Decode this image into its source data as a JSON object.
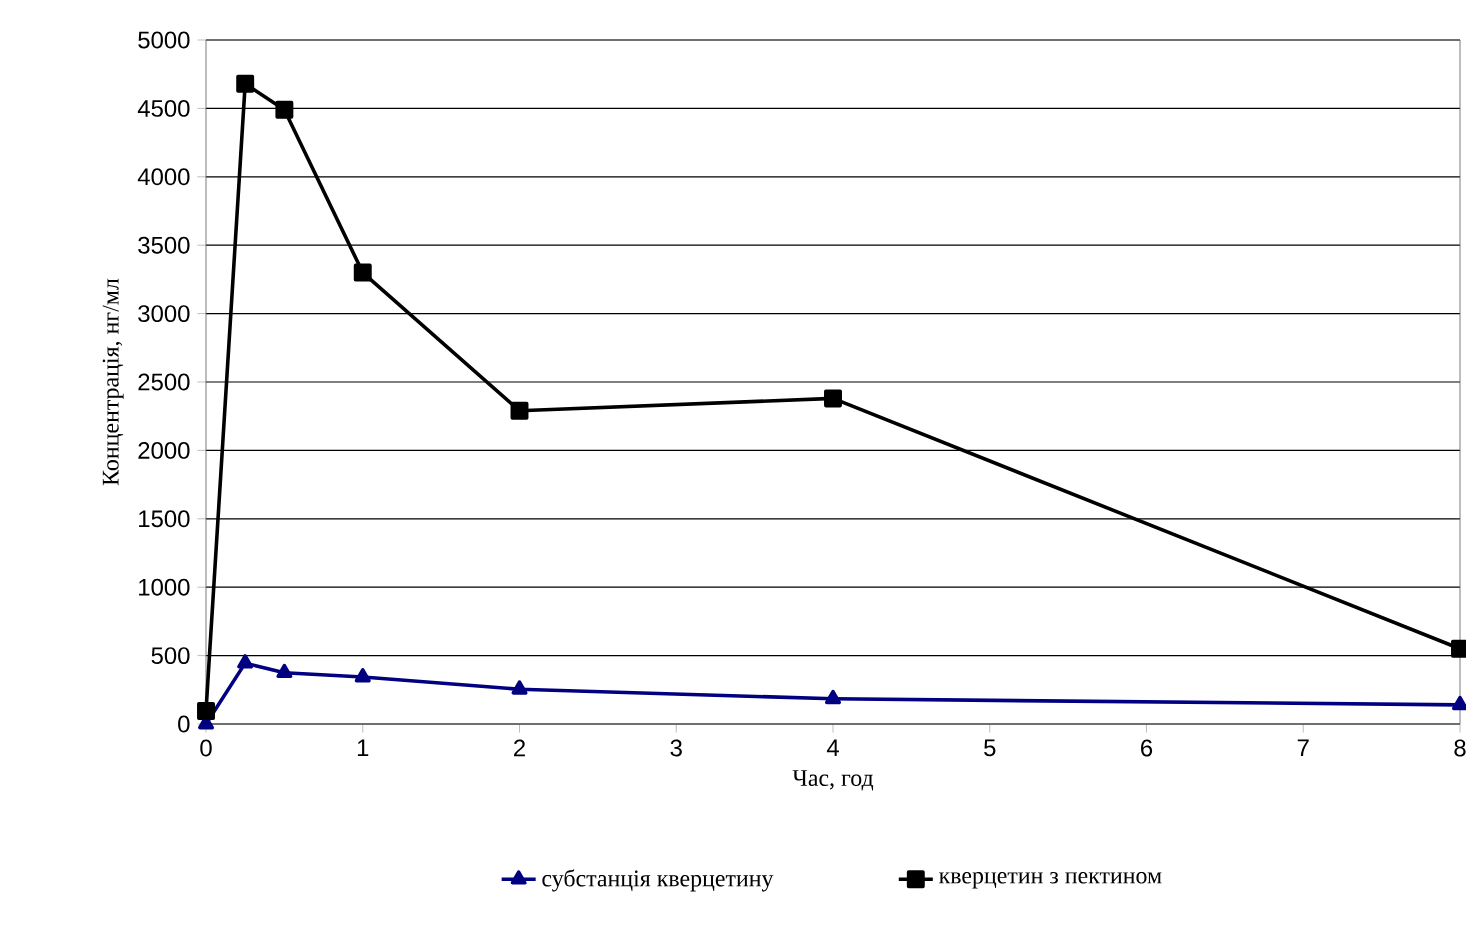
{
  "chart_data": {
    "type": "line",
    "xlabel": "Час, год",
    "ylabel": "Концентрація, нг/мл",
    "x": [
      0,
      0.25,
      0.5,
      1,
      2,
      4,
      8
    ],
    "series": [
      {
        "name": "субстанція кверцетину",
        "color": "#000080",
        "marker": "triangle",
        "values": [
          0,
          445,
          375,
          343,
          254,
          184,
          140
        ]
      },
      {
        "name": "кверцетин з пектином",
        "color": "#000000",
        "marker": "square",
        "values": [
          95,
          4680,
          4490,
          3300,
          2290,
          2380,
          550
        ]
      }
    ],
    "xlim": [
      0,
      8
    ],
    "xticks": [
      0,
      1,
      2,
      3,
      4,
      5,
      6,
      7,
      8
    ],
    "ylim": [
      0,
      5000
    ],
    "yticks": [
      0,
      500,
      1000,
      1500,
      2000,
      2500,
      3000,
      3500,
      4000,
      4500,
      5000
    ],
    "grid": "y",
    "legend": "bottom"
  }
}
